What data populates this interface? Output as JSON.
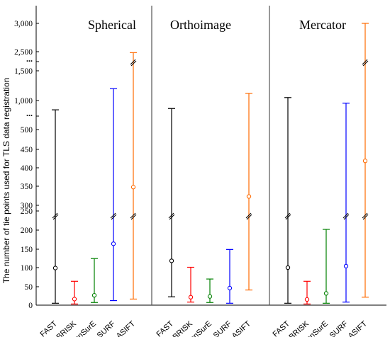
{
  "chart_data": {
    "type": "errorbar",
    "ylabel": "The number of tie points used for TLS data registration",
    "categories": [
      "FAST",
      "BRISK",
      "CenSurE",
      "SURF",
      "ASIFT"
    ],
    "y_scale": "broken",
    "y_ticks": [
      "0",
      "50",
      "100",
      "150",
      "200",
      "250",
      "300",
      "350",
      "400",
      "450",
      "500",
      "...",
      "1,000",
      "1,500",
      "...",
      "2,500",
      "3,000"
    ],
    "grid": false,
    "legend": "none",
    "panels": [
      {
        "title": "Spherical",
        "series": [
          {
            "category": "FAST",
            "color": "#000000",
            "min": 5,
            "mean": 98,
            "max": 650
          },
          {
            "category": "BRISK",
            "color": "#ff0000",
            "min": 3,
            "mean": 16,
            "max": 63
          },
          {
            "category": "CenSurE",
            "color": "#008000",
            "min": 7,
            "mean": 26,
            "max": 123
          },
          {
            "category": "SURF",
            "color": "#0000ff",
            "min": 12,
            "mean": 162,
            "max": 1200
          },
          {
            "category": "ASIFT",
            "color": "#ff6a00",
            "min": 16,
            "mean": 336,
            "max": 2450
          }
        ]
      },
      {
        "title": "Orthoimage",
        "series": [
          {
            "category": "FAST",
            "color": "#000000",
            "min": 22,
            "mean": 117,
            "max": 700
          },
          {
            "category": "BRISK",
            "color": "#ff0000",
            "min": 8,
            "mean": 21,
            "max": 100
          },
          {
            "category": "CenSurE",
            "color": "#008000",
            "min": 7,
            "mean": 23,
            "max": 69
          },
          {
            "category": "SURF",
            "color": "#0000ff",
            "min": 5,
            "mean": 45,
            "max": 147
          },
          {
            "category": "ASIFT",
            "color": "#ff6a00",
            "min": 40,
            "mean": 310,
            "max": 1120
          }
        ]
      },
      {
        "title": "Mercator",
        "series": [
          {
            "category": "FAST",
            "color": "#000000",
            "min": 5,
            "mean": 99,
            "max": 1050
          },
          {
            "category": "BRISK",
            "color": "#ff0000",
            "min": 3,
            "mean": 15,
            "max": 63
          },
          {
            "category": "CenSurE",
            "color": "#008000",
            "min": 5,
            "mean": 31,
            "max": 200
          },
          {
            "category": "SURF",
            "color": "#0000ff",
            "min": 8,
            "mean": 103,
            "max": 900
          },
          {
            "category": "ASIFT",
            "color": "#ff6a00",
            "min": 21,
            "mean": 409,
            "max": 3000
          }
        ]
      }
    ]
  }
}
